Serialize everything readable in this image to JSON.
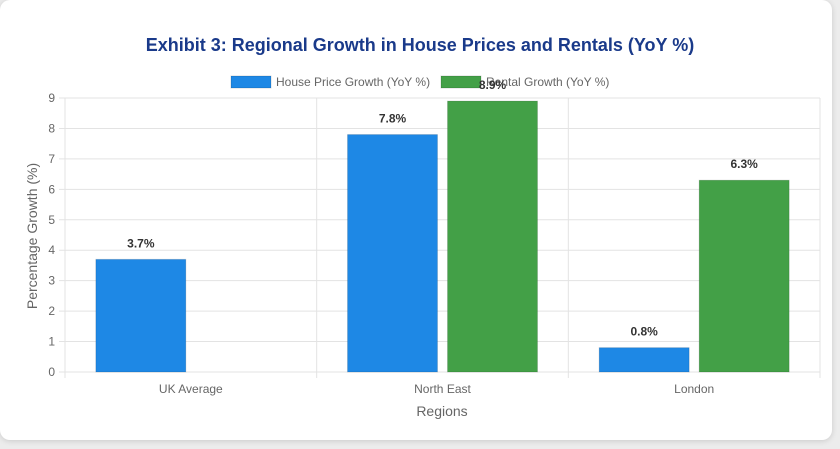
{
  "chart_data": {
    "type": "bar",
    "title": "Exhibit 3: Regional Growth in House Prices and Rentals (YoY %)",
    "categories": [
      "UK Average",
      "North East",
      "London"
    ],
    "series": [
      {
        "name": "House Price Growth (YoY %)",
        "color": "#1e88e5",
        "values": [
          3.7,
          7.8,
          0.8
        ],
        "labels": [
          "3.7%",
          "7.8%",
          "0.8%"
        ]
      },
      {
        "name": "Rental Growth (YoY %)",
        "color": "#43a047",
        "values": [
          null,
          8.9,
          6.3
        ],
        "labels": [
          "",
          "8.9%",
          "6.3%"
        ]
      }
    ],
    "xlabel": "Regions",
    "ylabel": "Percentage Growth (%)",
    "ylim": [
      0,
      9
    ],
    "yticks": [
      "0",
      "1",
      "2",
      "3",
      "4",
      "5",
      "6",
      "7",
      "8",
      "9"
    ],
    "grid": true,
    "legend": "top-center"
  }
}
